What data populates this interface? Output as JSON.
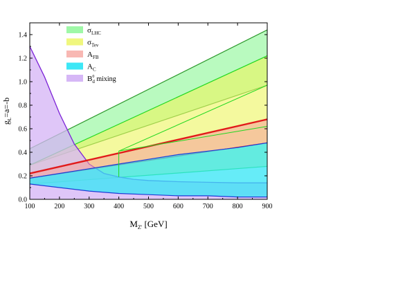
{
  "chart_data": {
    "type": "area",
    "xlim": [
      100,
      900
    ],
    "ylim": [
      0.0,
      1.5
    ],
    "x_ticks": [
      "100",
      "200",
      "300",
      "400",
      "500",
      "600",
      "700",
      "800",
      "900"
    ],
    "y_ticks": [
      "0.0",
      "0.2",
      "0.4",
      "0.6",
      "0.8",
      "1.0",
      "1.2",
      "1.4"
    ],
    "grid": false,
    "legend_position": "top-left",
    "xlabel": {
      "main": "M",
      "sub": "Z'",
      "rest": " [GeV]"
    },
    "ylabel": {
      "main": "g",
      "sub": "L",
      "rest": "=a=-b"
    },
    "series": [
      {
        "key": "lhc",
        "label": {
          "main": "σ",
          "sub": "LHC"
        },
        "color": "#7ff58a",
        "edge": "#2e9a2e",
        "opacity": 0.55,
        "x": [
          100,
          900
        ],
        "lower": [
          0.29,
          0.97
        ],
        "upper": [
          0.43,
          1.44
        ]
      },
      {
        "key": "tev",
        "label": {
          "main": "σ",
          "sub": "Tev"
        },
        "color": "#ecf55e",
        "edge": "#1fd81f",
        "opacity": 0.6,
        "x": [
          100,
          900
        ],
        "lower": [
          0.13,
          0.28
        ],
        "upper": [
          0.29,
          1.22
        ]
      },
      {
        "key": "afb",
        "label": {
          "main": "A",
          "sub": "FB"
        },
        "color": "#f5a09a",
        "edge": "#e11a1a",
        "opacity": 0.55,
        "x": [
          100,
          900
        ],
        "lower": [
          0.18,
          0.48
        ],
        "upper": [
          0.22,
          0.68
        ]
      },
      {
        "key": "ac",
        "label": {
          "main": "A",
          "sub": "C"
        },
        "color": "#33e6f5",
        "edge": "#1e3bd6",
        "opacity": 0.75,
        "x": [
          100,
          200,
          300,
          400,
          500,
          600,
          700,
          800,
          900
        ],
        "lower": [
          0.13,
          0.1,
          0.07,
          0.05,
          0.04,
          0.03,
          0.03,
          0.02,
          0.02
        ],
        "upper": [
          0.18,
          0.22,
          0.26,
          0.3,
          0.34,
          0.38,
          0.41,
          0.44,
          0.48
        ]
      },
      {
        "key": "bd",
        "label": {
          "main": "B",
          "sup": "0",
          "sub": "d",
          "rest": " mixing"
        },
        "color": "#d4b3f5",
        "edge": "#7b22d6",
        "opacity": 0.75,
        "x": [
          100,
          150,
          200,
          250,
          300,
          350,
          400,
          450,
          500,
          600,
          700,
          800,
          900
        ],
        "curve": [
          1.3,
          1.04,
          0.73,
          0.47,
          0.3,
          0.22,
          0.19,
          0.17,
          0.16,
          0.15,
          0.145,
          0.14,
          0.14
        ]
      }
    ],
    "extra_lines": [
      {
        "key": "tev-mid",
        "color": "#1fd81f",
        "x": [
          400,
          900
        ],
        "y": [
          0.41,
          0.62
        ]
      },
      {
        "key": "tev-step",
        "color": "#1fd81f",
        "x": [
          400,
          400
        ],
        "y": [
          0.19,
          0.41
        ]
      },
      {
        "key": "lhc-inner",
        "color": "#1fd81f",
        "x": [
          400,
          900
        ],
        "y": [
          0.41,
          0.97
        ]
      }
    ]
  }
}
